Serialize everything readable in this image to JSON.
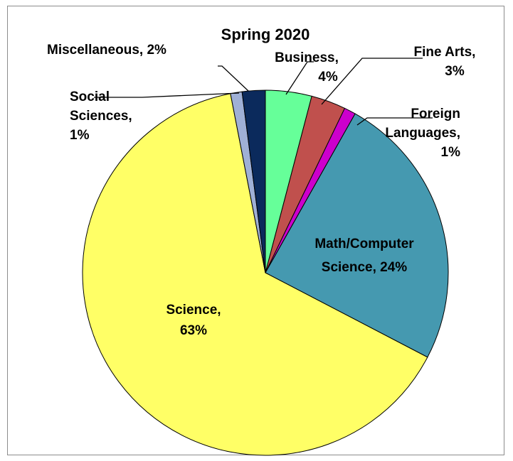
{
  "chart_data": {
    "type": "pie",
    "title": "Spring 2020",
    "slices": [
      {
        "label": "Business",
        "value": 4,
        "display": "4%",
        "color": "#66ff99"
      },
      {
        "label": "Fine Arts",
        "value": 3,
        "display": "3%",
        "color": "#c0504d"
      },
      {
        "label": "Foreign Languages",
        "value": 1,
        "display": "1%",
        "color": "#cc00cc"
      },
      {
        "label": "Math/Computer Science",
        "value": 24,
        "display": "24%",
        "color": "#4599b0"
      },
      {
        "label": "Science",
        "value": 63,
        "display": "63%",
        "color": "#ffff66"
      },
      {
        "label": "Social Sciences",
        "value": 1,
        "display": "1%",
        "color": "#9fb0d6"
      },
      {
        "label": "Miscellaneous",
        "value": 2,
        "display": "2%",
        "color": "#0b2a5c"
      }
    ],
    "start_angle": "12 o'clock",
    "direction": "clockwise",
    "legend": "none"
  }
}
